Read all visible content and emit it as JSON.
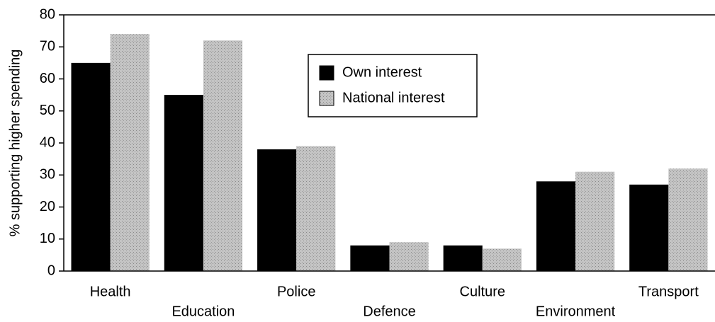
{
  "chart_data": {
    "type": "bar",
    "y_label": "% supporting higher spending",
    "categories": [
      "Health",
      "Education",
      "Police",
      "Defence",
      "Culture",
      "Environment",
      "Transport"
    ],
    "series": [
      {
        "name": "Own interest",
        "color": "#000000",
        "values": [
          65,
          55,
          38,
          8,
          8,
          28,
          27
        ]
      },
      {
        "name": "National interest",
        "color": "#b4b4b4",
        "values": [
          74,
          72,
          39,
          9,
          7,
          31,
          32
        ]
      }
    ],
    "ylim": [
      0,
      80
    ],
    "yticks": [
      0,
      10,
      20,
      30,
      40,
      50,
      60,
      70,
      80
    ],
    "legend": "top-center"
  }
}
